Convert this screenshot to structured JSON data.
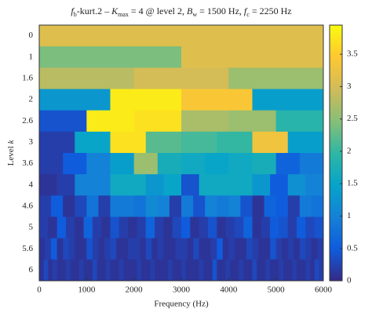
{
  "chart_data": {
    "type": "heatmap",
    "title_parts": [
      {
        "text": "f",
        "italic": true
      },
      {
        "text": "b",
        "sub": true
      },
      {
        "text": "-kurt.2 – "
      },
      {
        "text": "K",
        "italic": true
      },
      {
        "text": "max",
        "sub": true
      },
      {
        "text": " = 4 @ level 2, "
      },
      {
        "text": "B",
        "italic": true
      },
      {
        "text": "w",
        "sub": true
      },
      {
        "text": " = 1500 Hz, "
      },
      {
        "text": "f",
        "italic": true
      },
      {
        "text": "c",
        "sub": true
      },
      {
        "text": " = 2250 Hz"
      }
    ],
    "xlabel": "Frequency (Hz)",
    "ylabel_parts": [
      {
        "text": "Level "
      },
      {
        "text": "k",
        "italic": true
      }
    ],
    "categories": [
      "0",
      "1",
      "1.6",
      "2",
      "2.6",
      "3",
      "3.6",
      "4",
      "4.6",
      "5",
      "5.6",
      "6"
    ],
    "values": [
      [
        3.1
      ],
      [
        2.4,
        3.1
      ],
      [
        2.8,
        3.0,
        2.6
      ],
      [
        1.3,
        3.8,
        3.4,
        1.4
      ],
      [
        0.4,
        3.8,
        3.7,
        2.7,
        2.6,
        1.9
      ],
      [
        0.2,
        1.5,
        3.7,
        2.2,
        2.1,
        2.0,
        3.3,
        1.4
      ],
      [
        0.2,
        0.5,
        1.0,
        1.4,
        2.6,
        1.7,
        1.6,
        1.5,
        1.6,
        1.7,
        0.6,
        0.9
      ],
      [
        0.1,
        0.2,
        1.0,
        1.0,
        1.6,
        1.6,
        1.3,
        1.5,
        0.4,
        1.6,
        1.6,
        1.6,
        1.3,
        0.5,
        1.2,
        1.0
      ],
      [
        0.2,
        0.5,
        0.1,
        0.3,
        0.8,
        0.2,
        0.9,
        0.9,
        0.8,
        1.1,
        1.0,
        0.2,
        0.9,
        0.4,
        1.0,
        0.9,
        1.0,
        0.4,
        0.1,
        0.6,
        0.5,
        0.2,
        0.9,
        0.8
      ],
      [
        0.2,
        0.1,
        0.5,
        0.2,
        0.1,
        0.6,
        0.2,
        0.1,
        0.4,
        0.2,
        0.1,
        0.2,
        0.6,
        0.2,
        0.1,
        0.3,
        0.5,
        0.1,
        0.2,
        0.4,
        0.1,
        0.2,
        0.3,
        0.6,
        0.1,
        0.2,
        0.5,
        0.4,
        0.2,
        0.5,
        0.3,
        0.4
      ],
      [
        0.1,
        0.2,
        0.5,
        0.1,
        0.3,
        0.2,
        0.1,
        0.1,
        0.4,
        0.2,
        0.1,
        0.2,
        0.3,
        0.1,
        0.1,
        0.2,
        0.2,
        0.1,
        0.3,
        0.1,
        0.2,
        0.1,
        0.1,
        0.2,
        0.2,
        0.1,
        0.3,
        0.1,
        0.1,
        0.2,
        0.5,
        0.1,
        0.2,
        0.1,
        0.1,
        0.3,
        0.2,
        0.1,
        0.1,
        0.4,
        0.2,
        0.1,
        0.2,
        0.1,
        0.3,
        0.2,
        0.1,
        0.2
      ],
      [
        0.1,
        0.3,
        0.1,
        0.2,
        0.1,
        0.1,
        0.2,
        0.1,
        0.1,
        0.2,
        0.1,
        0.1,
        0.3,
        0.1,
        0.1,
        0.2,
        0.1,
        0.1,
        0.2,
        0.1,
        0.1,
        0.1,
        0.2,
        0.1,
        0.1,
        0.2,
        0.1,
        0.1,
        0.1,
        0.2,
        0.1,
        0.1,
        0.2,
        0.1,
        0.1,
        0.1,
        0.2,
        0.1,
        0.1,
        0.4,
        0.1,
        0.1,
        0.2,
        0.1,
        0.1,
        0.2,
        0.1,
        0.1,
        0.3,
        0.1,
        0.1,
        0.2,
        0.1,
        0.1,
        0.2,
        0.1,
        0.1,
        0.2,
        0.1,
        0.1,
        0.2,
        0.1,
        0.3,
        0.2
      ]
    ],
    "xlim": [
      0,
      6000
    ],
    "xticks": [
      0,
      1000,
      2000,
      3000,
      4000,
      5000,
      6000
    ],
    "clim": [
      0,
      3.95
    ],
    "cticks": [
      0,
      0.5,
      1,
      1.5,
      2,
      2.5,
      3,
      3.5
    ],
    "colormap": [
      "#352a87",
      "#0f5cdd",
      "#1481d6",
      "#06a4ca",
      "#2eb7a4",
      "#87bf77",
      "#d1bb59",
      "#fec832",
      "#f9fb0e"
    ]
  }
}
